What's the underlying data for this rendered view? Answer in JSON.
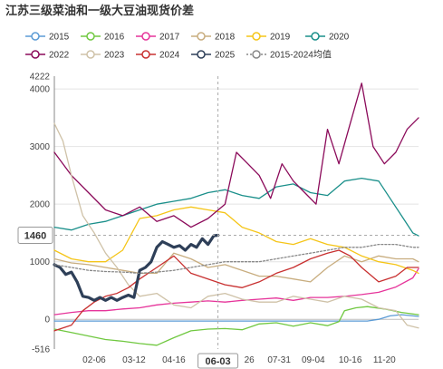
{
  "chart_data": {
    "type": "line",
    "title": "江苏三级菜油和一级大豆油现货价差",
    "xlabel": "",
    "ylabel": "",
    "ylim": [
      -516,
      4222
    ],
    "ymin_label": "-516",
    "ymax_label": "4222",
    "yticks": [
      0,
      1000,
      2000,
      3000,
      4000
    ],
    "x_tick_labels": [
      "02-06",
      "03-12",
      "04-16",
      "06-03",
      "26",
      "07-31",
      "09-04",
      "10-16",
      "11-20"
    ],
    "x_tick_pos": [
      0.14,
      0.28,
      0.42,
      0.575,
      0.685,
      0.79,
      0.91,
      1.04,
      1.16
    ],
    "x_range": [
      0,
      1.28
    ],
    "cursor": {
      "x": 0.575,
      "x_label": "06-03",
      "y": 1460,
      "y_label": "1460"
    },
    "grid": true,
    "legend_position": "top",
    "series": [
      {
        "name": "2015",
        "color": "#5b9bd5",
        "x": [
          0.0,
          1.1,
          1.14,
          1.18,
          1.22,
          1.26,
          1.28
        ],
        "y": [
          -30,
          -30,
          0,
          60,
          80,
          60,
          50
        ]
      },
      {
        "name": "2016",
        "color": "#70c840",
        "x": [
          0.0,
          0.06,
          0.12,
          0.18,
          0.24,
          0.3,
          0.36,
          0.42,
          0.48,
          0.54,
          0.6,
          0.66,
          0.72,
          0.78,
          0.84,
          0.9,
          0.96,
          1.0,
          1.02,
          1.06,
          1.1,
          1.16,
          1.22,
          1.28
        ],
        "y": [
          -170,
          -230,
          -290,
          -350,
          -380,
          -420,
          -450,
          -320,
          -200,
          -170,
          -160,
          -180,
          -80,
          -60,
          -120,
          -60,
          -110,
          -40,
          150,
          200,
          220,
          180,
          120,
          80
        ]
      },
      {
        "name": "2017",
        "color": "#e6349a",
        "x": [
          0.0,
          0.06,
          0.12,
          0.18,
          0.24,
          0.3,
          0.36,
          0.42,
          0.48,
          0.54,
          0.6,
          0.66,
          0.72,
          0.78,
          0.84,
          0.9,
          0.96,
          1.02,
          1.08,
          1.14,
          1.2,
          1.26,
          1.28
        ],
        "y": [
          80,
          120,
          150,
          150,
          180,
          200,
          250,
          280,
          300,
          320,
          300,
          330,
          350,
          370,
          330,
          380,
          380,
          400,
          430,
          470,
          560,
          720,
          880
        ]
      },
      {
        "name": "2018",
        "color": "#c8ad7f",
        "x": [
          0.0,
          0.06,
          0.12,
          0.18,
          0.24,
          0.3,
          0.36,
          0.42,
          0.48,
          0.54,
          0.6,
          0.66,
          0.72,
          0.78,
          0.84,
          0.9,
          0.96,
          1.02,
          1.08,
          1.14,
          1.2,
          1.26,
          1.28
        ],
        "y": [
          1050,
          980,
          950,
          900,
          850,
          800,
          800,
          1150,
          1050,
          900,
          950,
          850,
          750,
          750,
          700,
          650,
          900,
          1100,
          1000,
          1100,
          1050,
          1050,
          1000
        ]
      },
      {
        "name": "2019",
        "color": "#f5c518",
        "x": [
          0.0,
          0.06,
          0.12,
          0.18,
          0.24,
          0.3,
          0.36,
          0.42,
          0.48,
          0.54,
          0.6,
          0.66,
          0.72,
          0.78,
          0.84,
          0.9,
          0.96,
          1.02,
          1.08,
          1.14,
          1.2,
          1.26,
          1.28
        ],
        "y": [
          1200,
          1050,
          1000,
          1000,
          1200,
          1750,
          1800,
          1900,
          1950,
          1900,
          1850,
          1600,
          1500,
          1350,
          1300,
          1400,
          1300,
          1250,
          1100,
          1000,
          950,
          850,
          800
        ]
      },
      {
        "name": "2020",
        "color": "#1a8f8a",
        "x": [
          0.0,
          0.06,
          0.12,
          0.18,
          0.24,
          0.3,
          0.36,
          0.42,
          0.48,
          0.54,
          0.6,
          0.66,
          0.72,
          0.78,
          0.84,
          0.9,
          0.96,
          1.02,
          1.08,
          1.14,
          1.18,
          1.22,
          1.26,
          1.28
        ],
        "y": [
          1600,
          1550,
          1650,
          1700,
          1800,
          1900,
          2000,
          2050,
          2100,
          2200,
          2250,
          2150,
          2100,
          2300,
          2350,
          2200,
          2150,
          2400,
          2450,
          2400,
          2100,
          1800,
          1500,
          1450
        ]
      },
      {
        "name": "2022",
        "color": "#8b0a5a",
        "x": [
          0.0,
          0.06,
          0.12,
          0.18,
          0.24,
          0.3,
          0.36,
          0.42,
          0.48,
          0.54,
          0.6,
          0.64,
          0.68,
          0.72,
          0.76,
          0.8,
          0.84,
          0.88,
          0.92,
          0.96,
          1.0,
          1.04,
          1.08,
          1.12,
          1.16,
          1.2,
          1.24,
          1.28
        ],
        "y": [
          2900,
          2500,
          2200,
          1900,
          1800,
          1950,
          1700,
          1800,
          1600,
          1750,
          2000,
          2900,
          2700,
          2500,
          2100,
          2700,
          2400,
          2200,
          2000,
          3300,
          2700,
          3400,
          4100,
          3000,
          2700,
          2900,
          3300,
          3500
        ]
      },
      {
        "name": "2023",
        "color": "#cfc2a8",
        "x": [
          0.0,
          0.03,
          0.06,
          0.1,
          0.14,
          0.18,
          0.22,
          0.26,
          0.3,
          0.36,
          0.42,
          0.48,
          0.54,
          0.6,
          0.66,
          0.72,
          0.78,
          0.84,
          0.9,
          0.96,
          1.02,
          1.08,
          1.14,
          1.2,
          1.24,
          1.28
        ],
        "y": [
          3400,
          3100,
          2500,
          1800,
          1500,
          1150,
          900,
          600,
          400,
          450,
          250,
          200,
          400,
          450,
          350,
          300,
          300,
          400,
          350,
          300,
          400,
          350,
          200,
          150,
          -100,
          -150
        ]
      },
      {
        "name": "2024",
        "color": "#c83030",
        "x": [
          0.0,
          0.06,
          0.1,
          0.14,
          0.18,
          0.22,
          0.26,
          0.3,
          0.36,
          0.42,
          0.48,
          0.54,
          0.6,
          0.66,
          0.72,
          0.78,
          0.84,
          0.9,
          0.96,
          1.0,
          1.04,
          1.08,
          1.14,
          1.2,
          1.24,
          1.28
        ],
        "y": [
          -200,
          -100,
          150,
          300,
          400,
          450,
          550,
          700,
          900,
          1100,
          800,
          700,
          600,
          550,
          650,
          800,
          900,
          1050,
          1150,
          1200,
          1100,
          900,
          650,
          750,
          900,
          900
        ]
      },
      {
        "name": "2025",
        "color": "#2e3f58",
        "x": [
          0.0,
          0.02,
          0.04,
          0.06,
          0.08,
          0.1,
          0.12,
          0.14,
          0.16,
          0.18,
          0.2,
          0.22,
          0.24,
          0.26,
          0.28,
          0.3,
          0.32,
          0.34,
          0.36,
          0.38,
          0.4,
          0.42,
          0.44,
          0.46,
          0.48,
          0.5,
          0.52,
          0.54,
          0.56,
          0.575
        ],
        "y": [
          950,
          900,
          780,
          820,
          650,
          400,
          380,
          330,
          380,
          330,
          380,
          330,
          380,
          420,
          380,
          850,
          900,
          1000,
          1250,
          1350,
          1300,
          1250,
          1280,
          1200,
          1300,
          1250,
          1400,
          1300,
          1450,
          1460
        ]
      },
      {
        "name": "2015-2024均值",
        "color": "#888888",
        "x": [
          0.0,
          0.06,
          0.12,
          0.18,
          0.24,
          0.3,
          0.36,
          0.42,
          0.48,
          0.54,
          0.6,
          0.66,
          0.72,
          0.78,
          0.84,
          0.9,
          0.96,
          1.02,
          1.08,
          1.14,
          1.2,
          1.26,
          1.28
        ],
        "y": [
          950,
          900,
          850,
          830,
          820,
          800,
          820,
          850,
          900,
          950,
          1000,
          1000,
          1000,
          1050,
          1100,
          1150,
          1200,
          1250,
          1250,
          1300,
          1300,
          1250,
          1250
        ]
      }
    ]
  }
}
